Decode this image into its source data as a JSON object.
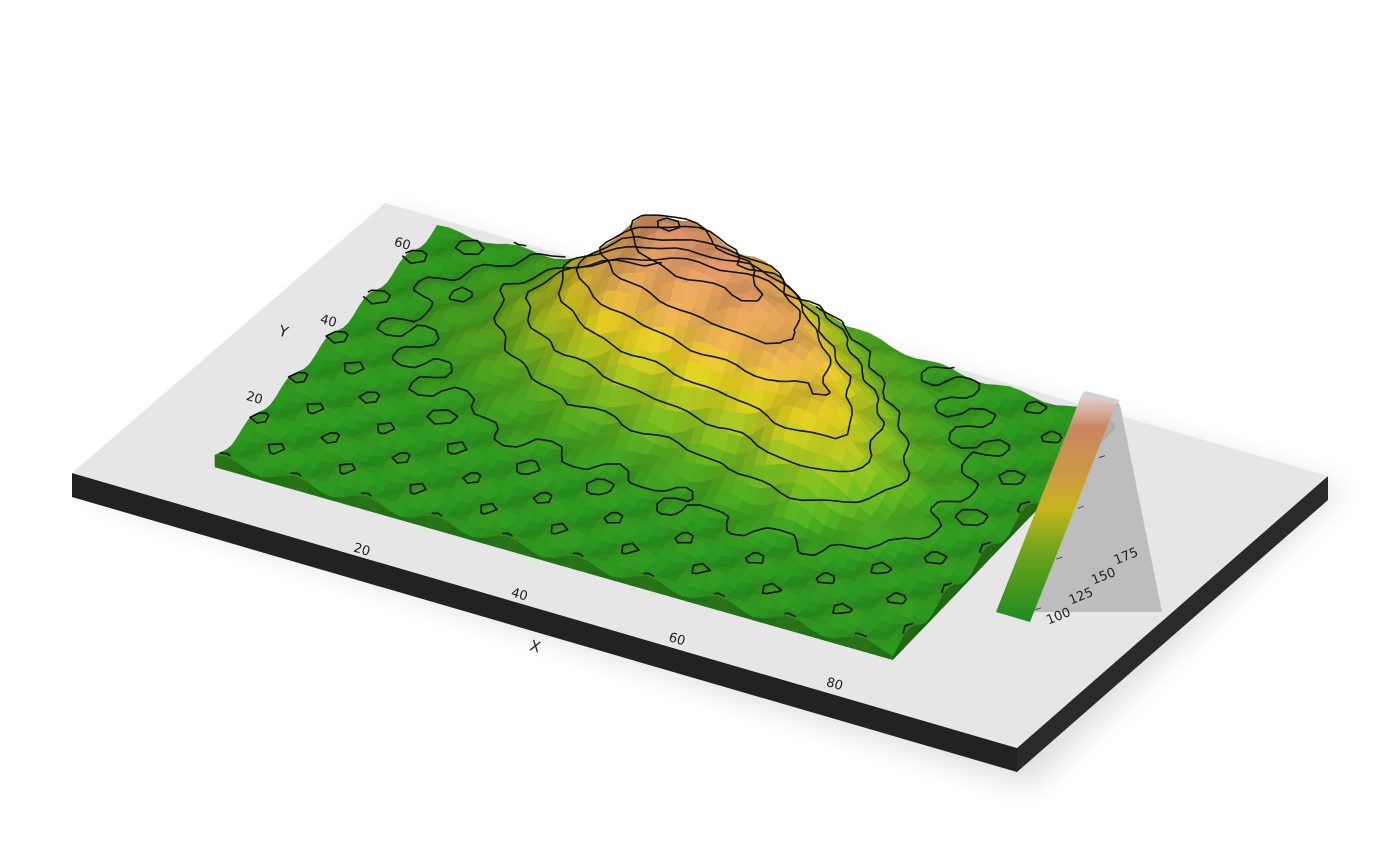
{
  "chart_data": {
    "type": "heatmap",
    "render": "3d-relief",
    "title": "",
    "xlabel": "X",
    "ylabel": "Y",
    "x_ticks": [
      "20",
      "40",
      "60",
      "80"
    ],
    "y_ticks": [
      "20",
      "40",
      "60"
    ],
    "xlim": [
      1,
      87
    ],
    "ylim": [
      1,
      61
    ],
    "zlim": [
      94,
      195
    ],
    "legend": {
      "ticks": [
        "100",
        "125",
        "150",
        "175"
      ],
      "values": [
        100,
        125,
        150,
        175
      ],
      "placement": "right"
    },
    "colorscale": [
      "#1e8c1e",
      "#6aa31c",
      "#c8b51c",
      "#cc9a46",
      "#c98662",
      "#e2d5d3"
    ],
    "contour_levels": [
      100,
      110,
      120,
      130,
      140,
      150,
      160,
      170,
      180,
      190
    ]
  },
  "scene": {
    "base_top_color": "#e6e6e6",
    "base_side_color": "#222222"
  }
}
